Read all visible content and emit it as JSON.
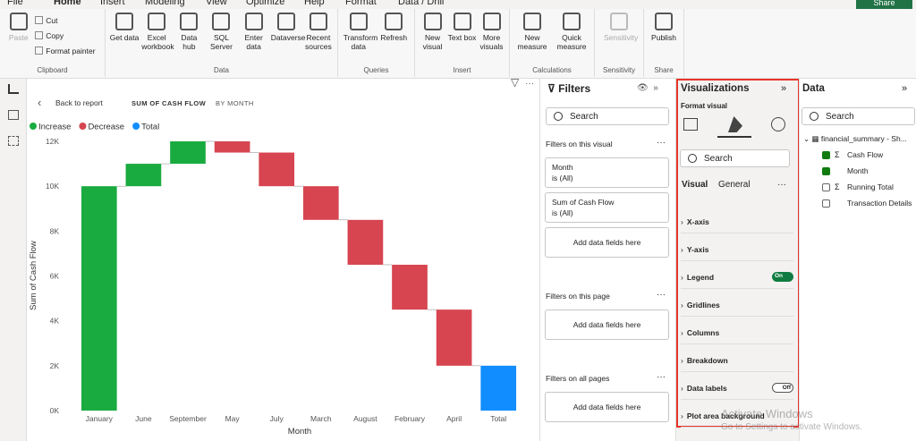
{
  "ribbon": {
    "tabs": [
      "File",
      "Home",
      "Insert",
      "Modeling",
      "View",
      "Optimize",
      "Help",
      "Format",
      "Data / Drill"
    ],
    "share": "Share",
    "groups": [
      {
        "label": "Clipboard",
        "buttons": [
          "Paste",
          "Cut",
          "Copy",
          "Format painter"
        ]
      },
      {
        "label": "Data",
        "buttons": [
          "Get data",
          "Excel workbook",
          "Data hub",
          "SQL Server",
          "Enter data",
          "Dataverse",
          "Recent sources"
        ]
      },
      {
        "label": "Queries",
        "buttons": [
          "Transform data",
          "Refresh"
        ]
      },
      {
        "label": "Insert",
        "buttons": [
          "New visual",
          "Text box",
          "More visuals"
        ]
      },
      {
        "label": "Calculations",
        "buttons": [
          "New measure",
          "Quick measure"
        ]
      },
      {
        "label": "Sensitivity",
        "buttons": [
          "Sensitivity"
        ]
      },
      {
        "label": "Share",
        "buttons": [
          "Publish"
        ]
      }
    ]
  },
  "report": {
    "back": "Back to report",
    "measure": "SUM OF CASH FLOW",
    "by": "BY MONTH"
  },
  "chart_data": {
    "type": "waterfall",
    "legend": [
      {
        "name": "Increase",
        "color": "#1aab40"
      },
      {
        "name": "Decrease",
        "color": "#d64550"
      },
      {
        "name": "Total",
        "color": "#118dff"
      }
    ],
    "categories": [
      "January",
      "June",
      "September",
      "May",
      "July",
      "March",
      "August",
      "February",
      "April",
      "Total"
    ],
    "values": [
      10000,
      1000,
      1000,
      -500,
      -1500,
      -1500,
      -2000,
      -2000,
      -2500,
      2000
    ],
    "y_label": "Sum of Cash Flow",
    "x_label": "Month",
    "ylim": [
      0,
      12000
    ],
    "yticks": [
      {
        "value": 0,
        "label": "0K"
      },
      {
        "value": 2000,
        "label": "2K"
      },
      {
        "value": 4000,
        "label": "4K"
      },
      {
        "value": 6000,
        "label": "6K"
      },
      {
        "value": 8000,
        "label": "8K"
      },
      {
        "value": 10000,
        "label": "10K"
      },
      {
        "value": 12000,
        "label": "12K"
      }
    ]
  },
  "filters": {
    "title": "Filters",
    "search": "Search",
    "sections": [
      {
        "title": "Filters on this visual",
        "cards": [
          {
            "field": "Month",
            "state": "is (All)"
          },
          {
            "field": "Sum of Cash Flow",
            "state": "is (All)"
          }
        ],
        "add": "Add data fields here"
      },
      {
        "title": "Filters on this page",
        "cards": [],
        "add": "Add data fields here"
      },
      {
        "title": "Filters on all pages",
        "cards": [],
        "add": "Add data fields here"
      }
    ]
  },
  "visualizations": {
    "title": "Visualizations",
    "subtitle": "Format visual",
    "search": "Search",
    "tabs": [
      "Visual",
      "General"
    ],
    "sections": [
      {
        "name": "X-axis"
      },
      {
        "name": "Y-axis"
      },
      {
        "name": "Legend",
        "toggle": "On"
      },
      {
        "name": "Gridlines"
      },
      {
        "name": "Columns"
      },
      {
        "name": "Breakdown"
      },
      {
        "name": "Data labels",
        "toggle": "Off"
      },
      {
        "name": "Plot area background"
      }
    ]
  },
  "data_pane": {
    "title": "Data",
    "search": "Search",
    "table": "financial_summary - Sh...",
    "fields": [
      {
        "name": "Cash Flow",
        "checked": true,
        "sum": true
      },
      {
        "name": "Month",
        "checked": true,
        "sum": false
      },
      {
        "name": "Running Total",
        "checked": false,
        "sum": true
      },
      {
        "name": "Transaction Details",
        "checked": false,
        "sum": false
      }
    ]
  },
  "watermark": {
    "title": "Activate Windows",
    "text": "Go to Settings to activate Windows."
  }
}
